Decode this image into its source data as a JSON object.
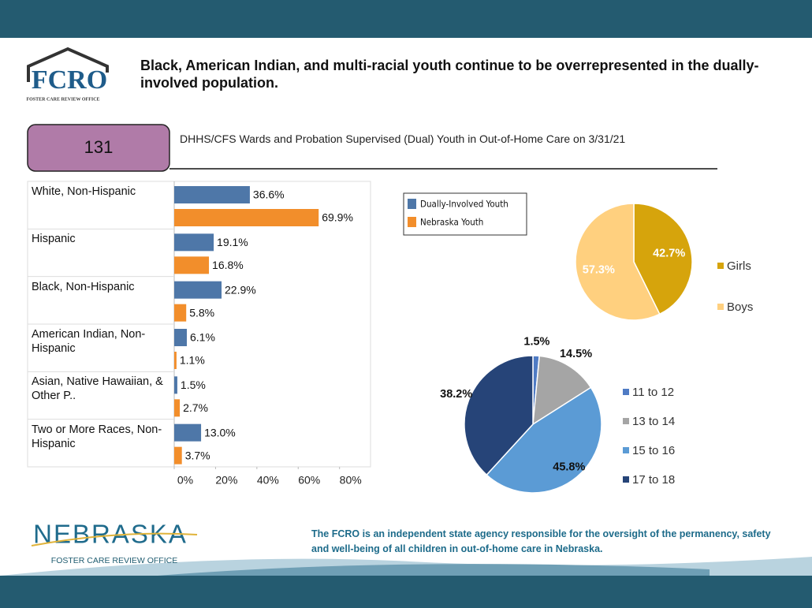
{
  "header": {
    "logo_text": "FCRO",
    "logo_subtext": "FOSTER CARE REVIEW OFFICE",
    "title": "Black, American Indian, and multi-racial youth continue to be overrepresented in the dually-involved population."
  },
  "count": {
    "value": 131,
    "label": "DHHS/CFS Wards and Probation Supervised (Dual) Youth in Out-of-Home Care on 3/31/21"
  },
  "chart_data": [
    {
      "type": "hbar",
      "categories": [
        "White, Non-Hispanic",
        "Hispanic",
        "Black, Non-Hispanic",
        "American Indian, Non-Hispanic",
        "Asian, Native Hawaiian, & Other P..",
        "Two or More Races, Non-Hispanic"
      ],
      "series": [
        {
          "name": "Dually-Involved Youth",
          "color": "#4e77a8",
          "values": [
            36.6,
            19.1,
            22.9,
            6.1,
            1.5,
            13.0
          ],
          "value_labels": [
            "36.6%",
            "19.1%",
            "22.9%",
            "6.1%",
            "1.5%",
            "13.0%"
          ]
        },
        {
          "name": "Nebraska Youth",
          "color": "#f28e2b",
          "values": [
            69.9,
            16.8,
            5.8,
            1.1,
            2.7,
            3.7
          ],
          "value_labels": [
            "69.9%",
            "16.8%",
            "5.8%",
            "1.1%",
            "2.7%",
            "3.7%"
          ]
        }
      ],
      "xlim": [
        0,
        95
      ],
      "xticks": [
        {
          "value": 0,
          "label": "0%"
        },
        {
          "value": 20,
          "label": "20%"
        },
        {
          "value": 40,
          "label": "40%"
        },
        {
          "value": 60,
          "label": "60%"
        },
        {
          "value": 80,
          "label": "80%"
        }
      ],
      "legend": "top-right"
    },
    {
      "type": "pie",
      "categories": [
        "Girls",
        "Boys"
      ],
      "values": [
        42.7,
        57.3
      ],
      "value_labels": [
        "42.7%",
        "57.3%"
      ],
      "colors": [
        "#d6a40c",
        "#ffd07f"
      ]
    },
    {
      "type": "pie",
      "categories": [
        "11 to 12",
        "13 to 14",
        "15 to 16",
        "17 to 18"
      ],
      "values": [
        1.5,
        14.5,
        45.8,
        38.2
      ],
      "value_labels": [
        "1.5%",
        "14.5%",
        "45.8%",
        "38.2%"
      ],
      "colors": [
        "#4f7bc4",
        "#a5a5a5",
        "#5b9bd5",
        "#264478"
      ]
    }
  ],
  "footer": {
    "logo_text": "NEBRASKA",
    "logo_subtext": "FOSTER CARE REVIEW OFFICE",
    "statement": "The FCRO is an independent state agency responsible for the oversight of the permanency, safety and well-being of all children in out-of-home care in Nebraska."
  }
}
